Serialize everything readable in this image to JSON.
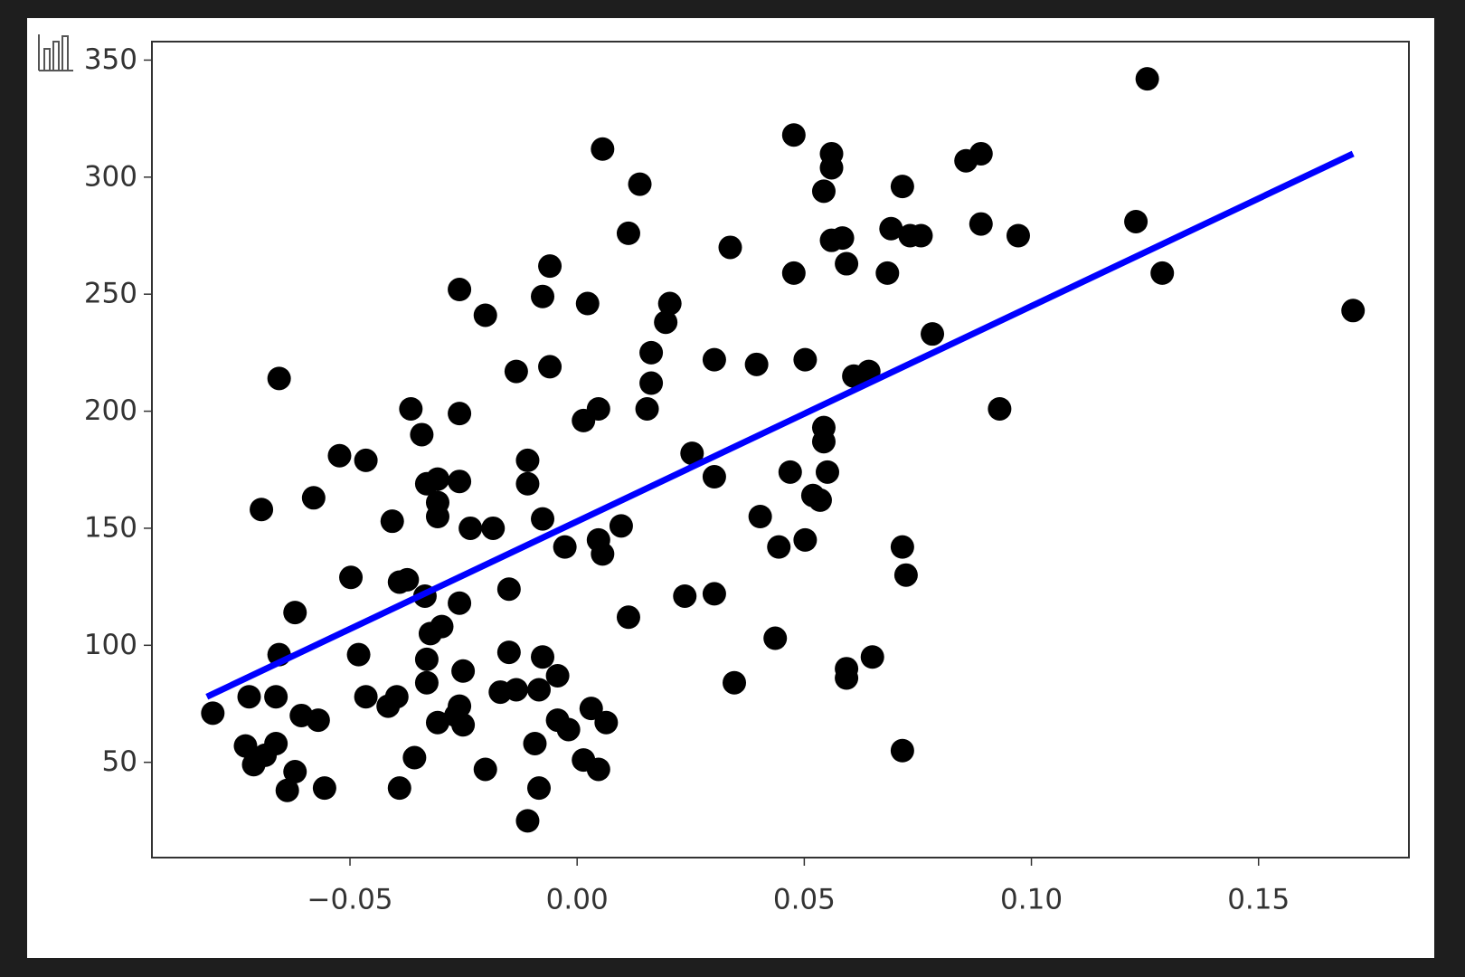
{
  "chart_data": {
    "type": "scatter",
    "x": [
      -0.0802,
      -0.0722,
      -0.0663,
      -0.073,
      -0.0712,
      -0.0663,
      -0.0687,
      -0.0638,
      -0.0621,
      -0.0656,
      -0.0695,
      -0.0656,
      -0.0621,
      -0.0607,
      -0.057,
      -0.0556,
      -0.058,
      -0.0523,
      -0.0498,
      -0.0465,
      -0.0481,
      -0.0465,
      -0.0407,
      -0.0416,
      -0.0397,
      -0.0391,
      -0.0358,
      -0.0366,
      -0.0342,
      -0.0331,
      -0.0307,
      -0.0307,
      -0.0307,
      -0.0374,
      -0.0391,
      -0.0335,
      -0.0323,
      -0.0298,
      -0.0331,
      -0.0331,
      -0.0307,
      -0.0267,
      -0.0259,
      -0.0202,
      -0.0259,
      -0.0259,
      -0.0259,
      -0.0251,
      -0.0259,
      -0.0251,
      -0.0235,
      -0.0185,
      -0.0202,
      -0.0169,
      -0.015,
      -0.015,
      -0.0134,
      -0.0134,
      -0.0109,
      -0.0109,
      -0.0109,
      -0.0093,
      -0.0084,
      -0.0076,
      -0.0076,
      -0.0084,
      -0.006,
      -0.0076,
      -0.006,
      -0.0043,
      -0.0043,
      -0.0027,
      -0.0019,
      0.0014,
      0.0047,
      0.0031,
      0.0064,
      0.0047,
      0.0056,
      0.0023,
      0.0014,
      0.0047,
      0.0056,
      0.0097,
      0.0113,
      0.0138,
      0.0113,
      0.0154,
      0.0163,
      0.0163,
      0.0195,
      0.0204,
      0.0237,
      0.0253,
      0.0302,
      0.0302,
      0.0302,
      0.0337,
      0.0346,
      0.0395,
      0.0403,
      0.0436,
      0.0444,
      0.0469,
      0.0477,
      0.0477,
      0.0502,
      0.0502,
      0.0519,
      0.0535,
      0.0543,
      0.0543,
      0.0543,
      0.0551,
      0.056,
      0.056,
      0.056,
      0.0584,
      0.0593,
      0.0593,
      0.0593,
      0.0609,
      0.0642,
      0.065,
      0.0683,
      0.0691,
      0.0716,
      0.0716,
      0.0724,
      0.0716,
      0.0733,
      0.0757,
      0.0782,
      0.0856,
      0.0889,
      0.0889,
      0.093,
      0.0971,
      0.123,
      0.1255,
      0.1288,
      0.1708
    ],
    "y": [
      71,
      78,
      78,
      57,
      49,
      58,
      53,
      38,
      46,
      214,
      158,
      96,
      114,
      70,
      68,
      39,
      163,
      181,
      129,
      179,
      96,
      78,
      153,
      74,
      78,
      39,
      52,
      201,
      190,
      169,
      171,
      161,
      155,
      128,
      127,
      121,
      105,
      108,
      94,
      84,
      67,
      70,
      252,
      241,
      199,
      170,
      118,
      89,
      74,
      66,
      150,
      150,
      47,
      80,
      124,
      97,
      81,
      217,
      179,
      169,
      25,
      58,
      39,
      154,
      95,
      81,
      262,
      249,
      219,
      87,
      68,
      142,
      64,
      51,
      47,
      73,
      67,
      145,
      139,
      246,
      196,
      201,
      312,
      151,
      276,
      297,
      112,
      201,
      212,
      225,
      238,
      246,
      121,
      182,
      222,
      172,
      122,
      270,
      84,
      220,
      155,
      103,
      142,
      174,
      318,
      259,
      222,
      145,
      164,
      162,
      294,
      193,
      187,
      174,
      310,
      304,
      273,
      274,
      263,
      90,
      86,
      215,
      217,
      95,
      259,
      278,
      296,
      142,
      130,
      55,
      275,
      275,
      233,
      307,
      310,
      280,
      201,
      275,
      281,
      342,
      259,
      243
    ],
    "color": "#000000",
    "line": {
      "x": [
        -0.0815,
        0.1708
      ],
      "y": [
        78,
        310
      ],
      "color": "#0000ff"
    },
    "xlim": [
      -0.0936,
      0.1831
    ],
    "ylim": [
      9.3,
      357.9
    ],
    "xticks": [
      {
        "value": -0.05,
        "label": "−0.05"
      },
      {
        "value": 0,
        "label": "0.00"
      },
      0.05,
      {
        "value": 0.1,
        "label": "0.10"
      },
      0.15
    ],
    "yticks": [
      50,
      100,
      150,
      200,
      250,
      300,
      350
    ],
    "grid": false
  }
}
